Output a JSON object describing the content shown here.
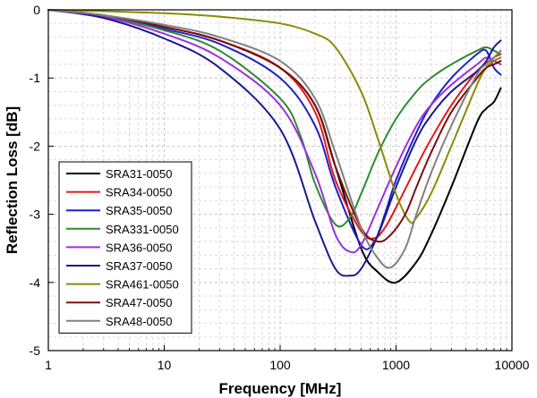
{
  "chart_data": {
    "type": "line",
    "xlabel": "Frequency [MHz]",
    "ylabel": "Reflection Loss [dB]",
    "x_scale": "log",
    "xlim": [
      1,
      10000
    ],
    "ylim": [
      -5,
      0
    ],
    "x_ticks": [
      {
        "value": 1,
        "label": "1"
      },
      {
        "value": 10,
        "label": "10"
      },
      {
        "value": 100,
        "label": "100"
      },
      {
        "value": 1000,
        "label": "1000"
      },
      {
        "value": 10000,
        "label": "10000"
      }
    ],
    "y_ticks": [
      {
        "value": 0,
        "label": "0"
      },
      {
        "value": -1,
        "label": "-1"
      },
      {
        "value": -2,
        "label": "-2"
      },
      {
        "value": -3,
        "label": "-3"
      },
      {
        "value": -4,
        "label": "-4"
      },
      {
        "value": -5,
        "label": "-5"
      }
    ],
    "grid": true,
    "legend_position": "lower-left",
    "series": [
      {
        "name": "SRA31-0050",
        "color": "#000000",
        "x": [
          1,
          3,
          10,
          30,
          100,
          200,
          300,
          500,
          700,
          1000,
          1500,
          2000,
          3000,
          5000,
          6000,
          7000,
          8000
        ],
        "y": [
          0,
          -0.08,
          -0.25,
          -0.45,
          -0.85,
          -1.4,
          -2.3,
          -3.5,
          -3.85,
          -4.0,
          -3.7,
          -3.3,
          -2.6,
          -1.65,
          -1.45,
          -1.35,
          -1.15
        ]
      },
      {
        "name": "SRA34-0050",
        "color": "#e31a1c",
        "x": [
          1,
          3,
          10,
          30,
          100,
          200,
          300,
          500,
          650,
          800,
          1000,
          1500,
          2000,
          3000,
          5000,
          7000,
          8000
        ],
        "y": [
          0,
          -0.08,
          -0.25,
          -0.45,
          -0.85,
          -1.5,
          -2.5,
          -3.25,
          -3.35,
          -3.2,
          -2.9,
          -2.3,
          -1.9,
          -1.4,
          -0.9,
          -0.7,
          -0.65
        ]
      },
      {
        "name": "SRA35-0050",
        "color": "#1f1fcf",
        "x": [
          1,
          3,
          10,
          30,
          100,
          200,
          300,
          500,
          650,
          800,
          1000,
          1500,
          2000,
          3000,
          5000,
          6000,
          7000,
          8000
        ],
        "y": [
          0,
          -0.09,
          -0.28,
          -0.5,
          -1.0,
          -1.7,
          -2.6,
          -3.45,
          -3.4,
          -3.0,
          -2.5,
          -1.8,
          -1.4,
          -1.0,
          -0.65,
          -0.6,
          -0.85,
          -0.95
        ]
      },
      {
        "name": "SRA331-0050",
        "color": "#2e8b2e",
        "x": [
          1,
          3,
          10,
          30,
          100,
          150,
          200,
          300,
          400,
          500,
          700,
          1000,
          1500,
          2000,
          3000,
          5000,
          6000,
          7000,
          8000
        ],
        "y": [
          0,
          -0.1,
          -0.3,
          -0.6,
          -1.3,
          -1.85,
          -2.55,
          -3.15,
          -3.05,
          -2.7,
          -2.1,
          -1.6,
          -1.2,
          -1.0,
          -0.8,
          -0.6,
          -0.55,
          -0.6,
          -0.65
        ]
      },
      {
        "name": "SRA36-0050",
        "color": "#9b30e0",
        "x": [
          1,
          3,
          10,
          30,
          100,
          200,
          300,
          400,
          500,
          700,
          1000,
          1500,
          2000,
          3000,
          5000,
          6000,
          7000,
          8000
        ],
        "y": [
          0,
          -0.1,
          -0.35,
          -0.7,
          -1.4,
          -2.4,
          -3.3,
          -3.55,
          -3.45,
          -2.9,
          -2.3,
          -1.7,
          -1.4,
          -1.1,
          -0.8,
          -0.7,
          -0.75,
          -0.8
        ]
      },
      {
        "name": "SRA37-0050",
        "color": "#1a1a8c",
        "x": [
          1,
          3,
          10,
          30,
          100,
          200,
          300,
          400,
          500,
          700,
          1000,
          1500,
          2000,
          3000,
          5000,
          6000,
          7000,
          8000
        ],
        "y": [
          0,
          -0.12,
          -0.42,
          -0.85,
          -1.75,
          -3.1,
          -3.8,
          -3.9,
          -3.8,
          -3.3,
          -2.6,
          -1.9,
          -1.55,
          -1.2,
          -0.9,
          -0.75,
          -0.55,
          -0.45
        ]
      },
      {
        "name": "SRA461-0050",
        "color": "#8b8b00",
        "x": [
          1,
          3,
          10,
          30,
          100,
          200,
          300,
          500,
          700,
          1000,
          1300,
          1500,
          2000,
          3000,
          5000,
          6000,
          7000,
          8000
        ],
        "y": [
          0,
          -0.02,
          -0.05,
          -0.1,
          -0.2,
          -0.35,
          -0.55,
          -1.2,
          -1.9,
          -2.7,
          -3.1,
          -3.05,
          -2.7,
          -2.0,
          -1.1,
          -0.85,
          -0.75,
          -0.7
        ]
      },
      {
        "name": "SRA47-0050",
        "color": "#7a1010",
        "x": [
          1,
          3,
          10,
          30,
          100,
          200,
          300,
          500,
          700,
          900,
          1200,
          1500,
          2000,
          3000,
          5000,
          6000,
          7000,
          8000
        ],
        "y": [
          0,
          -0.08,
          -0.25,
          -0.45,
          -0.85,
          -1.4,
          -2.3,
          -3.2,
          -3.4,
          -3.3,
          -3.0,
          -2.6,
          -2.1,
          -1.5,
          -1.0,
          -0.85,
          -0.8,
          -0.75
        ]
      },
      {
        "name": "SRA48-0050",
        "color": "#808080",
        "x": [
          1,
          3,
          10,
          30,
          100,
          200,
          300,
          500,
          700,
          900,
          1200,
          1500,
          2000,
          3000,
          5000,
          6000,
          7000,
          8000
        ],
        "y": [
          0,
          -0.08,
          -0.22,
          -0.4,
          -0.75,
          -1.3,
          -2.1,
          -3.2,
          -3.65,
          -3.78,
          -3.5,
          -3.0,
          -2.4,
          -1.7,
          -0.95,
          -0.8,
          -0.7,
          -0.6
        ]
      }
    ]
  }
}
